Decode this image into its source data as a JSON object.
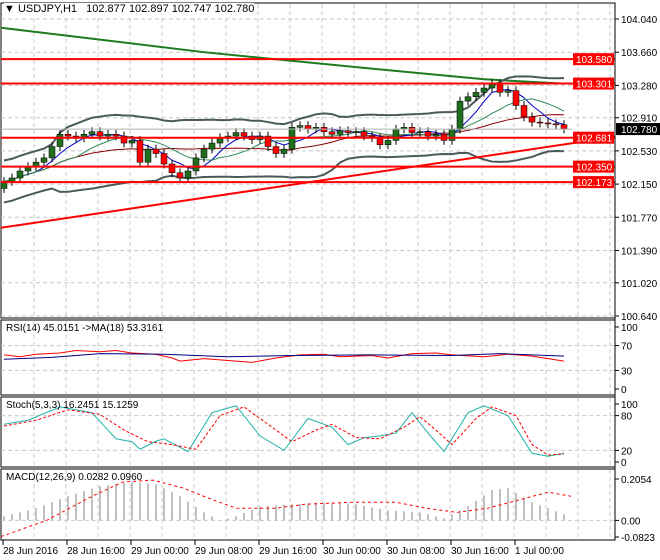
{
  "header": {
    "symbol": "USDJPY,H1",
    "ohlc": "102.877 102.897 102.747 102.780"
  },
  "colors": {
    "bull": "#1e6e1e",
    "bear": "#ff0000",
    "ma_long": "#1e7a1e",
    "bands": "#4a5a5a",
    "level": "#ff0000",
    "rsi": "#ff0000",
    "rsi_ma": "#000080",
    "stoch_main": "#20b2aa",
    "stoch_signal": "#ff0000",
    "macd_hist": "#c0c0c0",
    "macd_signal": "#ff0000"
  },
  "chart_data": [
    {
      "type": "candlestick",
      "title": "USDJPY,H1",
      "ylim": [
        100.64,
        104.04
      ],
      "y_ticks": [
        "104.040",
        "103.660",
        "103.280",
        "102.910",
        "102.530",
        "102.150",
        "101.770",
        "101.390",
        "101.020",
        "100.640"
      ],
      "closes": [
        102.18,
        102.22,
        102.3,
        102.35,
        102.4,
        102.45,
        102.58,
        102.72,
        102.7,
        102.68,
        102.72,
        102.75,
        102.7,
        102.72,
        102.7,
        102.62,
        102.65,
        102.4,
        102.55,
        102.5,
        102.38,
        102.28,
        102.22,
        102.3,
        102.45,
        102.55,
        102.62,
        102.68,
        102.7,
        102.74,
        102.7,
        102.66,
        102.7,
        102.58,
        102.5,
        102.55,
        102.8,
        102.82,
        102.78,
        102.8,
        102.75,
        102.72,
        102.76,
        102.74,
        102.75,
        102.7,
        102.68,
        102.6,
        102.65,
        102.78,
        102.8,
        102.74,
        102.75,
        102.7,
        102.72,
        102.65,
        102.78,
        103.1,
        103.15,
        103.2,
        103.25,
        103.3,
        103.2,
        103.22,
        103.05,
        102.92,
        102.86,
        102.85,
        102.84,
        102.83,
        102.78
      ],
      "first_open": 102.1,
      "ma_long": [
        [
          0,
          103.94
        ],
        [
          25,
          103.66
        ],
        [
          45,
          103.48
        ],
        [
          60,
          103.35
        ],
        [
          70,
          103.3
        ]
      ],
      "levels": [
        {
          "price": 103.58,
          "label": "103.580"
        },
        {
          "price": 103.301,
          "label": "103.301"
        },
        {
          "price": 102.681,
          "label": "102.681"
        },
        {
          "price": 102.35,
          "label": "102.350"
        },
        {
          "price": 102.173,
          "label": "102.173"
        }
      ],
      "trendline": {
        "start_price": 101.65,
        "end_price": 102.69
      },
      "current_price": {
        "price": 102.78,
        "label": "102.780"
      },
      "x_labels": [
        "28 Jun 2016",
        "28 Jun 16:00",
        "29 Jun 00:00",
        "29 Jun 08:00",
        "29 Jun 16:00",
        "30 Jun 00:00",
        "30 Jun 08:00",
        "30 Jun 16:00",
        "1 Jul 00:00"
      ]
    },
    {
      "type": "line",
      "title": "RSI(14) 45.0151  ->MA(18) 53.3161",
      "ylim": [
        0,
        100
      ],
      "y_ticks": [
        "100",
        "70",
        "30",
        "0"
      ],
      "series": [
        {
          "name": "RSI(14)",
          "points": [
            [
              0,
              55
            ],
            [
              2,
              52
            ],
            [
              4,
              56
            ],
            [
              7,
              58
            ],
            [
              9,
              62
            ],
            [
              12,
              60
            ],
            [
              14,
              62
            ],
            [
              16,
              58
            ],
            [
              19,
              56
            ],
            [
              21,
              50
            ],
            [
              22,
              45
            ],
            [
              25,
              49
            ],
            [
              28,
              46
            ],
            [
              31,
              43
            ],
            [
              34,
              50
            ],
            [
              37,
              55
            ],
            [
              40,
              56
            ],
            [
              42,
              52
            ],
            [
              46,
              54
            ],
            [
              48,
              50
            ],
            [
              51,
              57
            ],
            [
              54,
              58
            ],
            [
              56,
              55
            ],
            [
              60,
              52
            ],
            [
              63,
              56
            ],
            [
              66,
              53
            ],
            [
              69,
              47
            ],
            [
              70,
              45
            ]
          ]
        },
        {
          "name": "MA(18)",
          "points": [
            [
              0,
              48
            ],
            [
              6,
              51
            ],
            [
              12,
              57
            ],
            [
              20,
              56
            ],
            [
              28,
              52
            ],
            [
              36,
              54
            ],
            [
              46,
              55
            ],
            [
              56,
              54
            ],
            [
              62,
              57
            ],
            [
              66,
              55
            ],
            [
              70,
              53
            ]
          ]
        }
      ]
    },
    {
      "type": "line",
      "title": "Stoch(5,3,3) 16.2451 15.1259",
      "ylim": [
        0,
        100
      ],
      "y_ticks": [
        "100",
        "80",
        "20",
        "0"
      ],
      "series": [
        {
          "name": "main",
          "points": [
            [
              0,
              65
            ],
            [
              3,
              72
            ],
            [
              7,
              95
            ],
            [
              11,
              85
            ],
            [
              14,
              40
            ],
            [
              16,
              35
            ],
            [
              17,
              22
            ],
            [
              19,
              36
            ],
            [
              20,
              40
            ],
            [
              23,
              18
            ],
            [
              26,
              85
            ],
            [
              29,
              97
            ],
            [
              32,
              45
            ],
            [
              35,
              20
            ],
            [
              38,
              75
            ],
            [
              41,
              60
            ],
            [
              43,
              30
            ],
            [
              45,
              42
            ],
            [
              47,
              45
            ],
            [
              49,
              50
            ],
            [
              51,
              85
            ],
            [
              53,
              50
            ],
            [
              55,
              18
            ],
            [
              58,
              85
            ],
            [
              60,
              97
            ],
            [
              63,
              80
            ],
            [
              66,
              15
            ],
            [
              68,
              10
            ],
            [
              70,
              15
            ]
          ]
        },
        {
          "name": "signal",
          "points": [
            [
              0,
              62
            ],
            [
              4,
              72
            ],
            [
              8,
              90
            ],
            [
              12,
              82
            ],
            [
              15,
              55
            ],
            [
              18,
              35
            ],
            [
              21,
              30
            ],
            [
              24,
              22
            ],
            [
              27,
              80
            ],
            [
              30,
              95
            ],
            [
              33,
              65
            ],
            [
              36,
              35
            ],
            [
              39,
              55
            ],
            [
              41,
              65
            ],
            [
              44,
              42
            ],
            [
              47,
              40
            ],
            [
              50,
              60
            ],
            [
              52,
              78
            ],
            [
              54,
              55
            ],
            [
              56,
              30
            ],
            [
              59,
              75
            ],
            [
              61,
              95
            ],
            [
              64,
              80
            ],
            [
              66,
              30
            ],
            [
              68,
              12
            ],
            [
              70,
              14
            ]
          ]
        }
      ]
    },
    {
      "type": "bar+line",
      "title": "MACD(12,26,9) 0.0282 0.0960",
      "ylim": [
        -0.0823,
        0.2054
      ],
      "y_ticks": [
        "0.2054",
        "0.00",
        "-0.0823"
      ],
      "histogram": [
        [
          0,
          0.02
        ],
        [
          4,
          0.06
        ],
        [
          8,
          0.12
        ],
        [
          12,
          0.17
        ],
        [
          16,
          0.19
        ],
        [
          19,
          0.18
        ],
        [
          22,
          0.12
        ],
        [
          25,
          0.04
        ],
        [
          27,
          0.0
        ],
        [
          29,
          0.02
        ],
        [
          32,
          0.07
        ],
        [
          36,
          0.08
        ],
        [
          40,
          0.09
        ],
        [
          44,
          0.08
        ],
        [
          48,
          0.05
        ],
        [
          52,
          0.04
        ],
        [
          55,
          0.01
        ],
        [
          58,
          0.07
        ],
        [
          61,
          0.15
        ],
        [
          63,
          0.16
        ],
        [
          66,
          0.09
        ],
        [
          70,
          0.03
        ]
      ],
      "signal": [
        [
          0,
          -0.08
        ],
        [
          6,
          0.0
        ],
        [
          12,
          0.12
        ],
        [
          16,
          0.19
        ],
        [
          20,
          0.2
        ],
        [
          24,
          0.16
        ],
        [
          28,
          0.1
        ],
        [
          31,
          0.06
        ],
        [
          36,
          0.06
        ],
        [
          40,
          0.08
        ],
        [
          46,
          0.09
        ],
        [
          52,
          0.09
        ],
        [
          56,
          0.06
        ],
        [
          60,
          0.04
        ],
        [
          64,
          0.06
        ],
        [
          68,
          0.1
        ],
        [
          72,
          0.14
        ],
        [
          75,
          0.12
        ]
      ]
    }
  ]
}
